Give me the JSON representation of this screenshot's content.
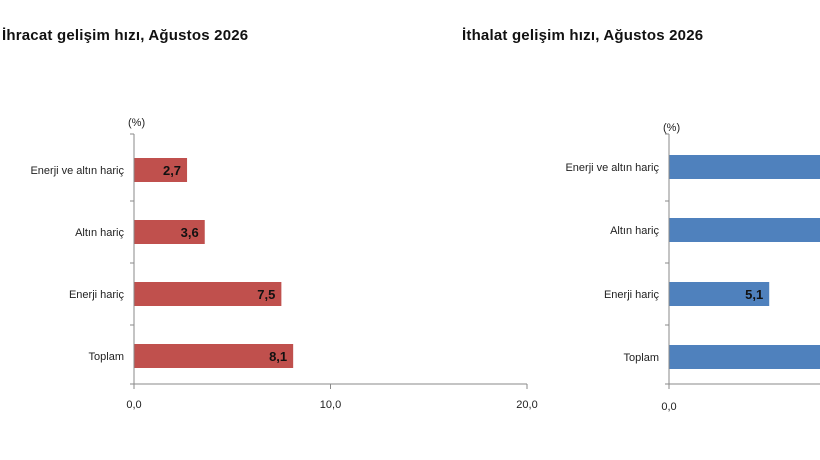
{
  "chart_data": [
    {
      "type": "bar",
      "orientation": "horizontal",
      "title": "İhracat gelişim hızı, Ağustos 2026",
      "unit": "(%)",
      "categories": [
        "Enerji ve altın hariç",
        "Altın hariç",
        "Enerji hariç",
        "Toplam"
      ],
      "values": [
        2.7,
        3.6,
        7.5,
        8.1
      ],
      "value_labels": [
        "2,7",
        "3,6",
        "7,5",
        "8,1"
      ],
      "xlim": [
        0,
        20
      ],
      "ticks": [
        0,
        10,
        20
      ],
      "tick_labels": [
        "0,0",
        "10,0",
        "20,0"
      ],
      "color": "#c0504d"
    },
    {
      "type": "bar",
      "orientation": "horizontal",
      "title": "İthalat gelişim hızı, Ağustos 2026",
      "unit": "(%)",
      "categories": [
        "Enerji ve altın hariç",
        "Altın hariç",
        "Enerji hariç",
        "Toplam"
      ],
      "values": [
        null,
        null,
        5.1,
        null
      ],
      "value_labels": [
        "",
        "",
        "5,1",
        ""
      ],
      "xlim": [
        0,
        20
      ],
      "ticks": [
        0
      ],
      "tick_labels": [
        "0,0"
      ],
      "color": "#4f81bd"
    }
  ]
}
